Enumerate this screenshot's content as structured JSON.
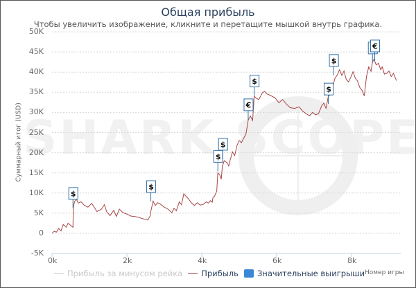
{
  "header": {
    "title": "Общая прибыль",
    "subtitle": "Чтобы увеличить изображение, кликните и перетащите мышкой внутрь графика."
  },
  "watermark": "SHARK SCOPE",
  "colors": {
    "profit_line": "#a84545",
    "rake_line": "#cccccc",
    "flag_border": "#2f6fa6",
    "flag_legend": "#3a87d6",
    "grid": "#d8d8d8",
    "axis": "#c0d0e0"
  },
  "chart_data": {
    "type": "line",
    "title": "Общая прибыль",
    "subtitle": "Чтобы увеличить изображение, кликните и перетащите мышкой внутрь графика.",
    "xlabel": "Номер игры",
    "ylabel": "Суммарный итог (USD)",
    "xlim": [
      0,
      9400
    ],
    "ylim": [
      -5000,
      50000
    ],
    "grid": true,
    "legend_position": "bottom",
    "y_ticks": [
      "-5K",
      "0",
      "5K",
      "10K",
      "15K",
      "20K",
      "25K",
      "30K",
      "35K",
      "40K",
      "45K",
      "50K"
    ],
    "x_ticks": [
      "0k",
      "2k",
      "4k",
      "6k",
      "8k"
    ],
    "legend": [
      {
        "label": "Прибыль за минусом рейка",
        "type": "line",
        "visible": false
      },
      {
        "label": "Прибыль",
        "type": "line",
        "visible": true
      },
      {
        "label": "Значительные выигрыши",
        "type": "flag",
        "visible": true
      }
    ],
    "series": [
      {
        "name": "Прибыль",
        "points": [
          [
            0,
            0
          ],
          [
            60,
            500
          ],
          [
            120,
            300
          ],
          [
            180,
            1200
          ],
          [
            240,
            600
          ],
          [
            300,
            2200
          ],
          [
            380,
            1500
          ],
          [
            430,
            2500
          ],
          [
            560,
            1500
          ],
          [
            570,
            6500
          ],
          [
            600,
            7800
          ],
          [
            650,
            8500
          ],
          [
            700,
            7500
          ],
          [
            780,
            7800
          ],
          [
            860,
            7000
          ],
          [
            960,
            6500
          ],
          [
            1060,
            7400
          ],
          [
            1120,
            6600
          ],
          [
            1200,
            5400
          ],
          [
            1320,
            6000
          ],
          [
            1400,
            7100
          ],
          [
            1460,
            5400
          ],
          [
            1550,
            4400
          ],
          [
            1650,
            5700
          ],
          [
            1720,
            4200
          ],
          [
            1800,
            6000
          ],
          [
            1900,
            5100
          ],
          [
            2000,
            4800
          ],
          [
            2100,
            4300
          ],
          [
            2200,
            4200
          ],
          [
            2300,
            4000
          ],
          [
            2400,
            3700
          ],
          [
            2560,
            3300
          ],
          [
            2620,
            4300
          ],
          [
            2640,
            5500
          ],
          [
            2700,
            8000
          ],
          [
            2760,
            6900
          ],
          [
            2820,
            7600
          ],
          [
            2900,
            7200
          ],
          [
            3000,
            6500
          ],
          [
            3100,
            6000
          ],
          [
            3200,
            5100
          ],
          [
            3260,
            6200
          ],
          [
            3320,
            5600
          ],
          [
            3400,
            7800
          ],
          [
            3460,
            7100
          ],
          [
            3520,
            9800
          ],
          [
            3580,
            9200
          ],
          [
            3640,
            8600
          ],
          [
            3720,
            7600
          ],
          [
            3800,
            6900
          ],
          [
            3880,
            7600
          ],
          [
            3960,
            7000
          ],
          [
            4040,
            7200
          ],
          [
            4120,
            7800
          ],
          [
            4180,
            7500
          ],
          [
            4230,
            8100
          ],
          [
            4280,
            7700
          ],
          [
            4300,
            8900
          ],
          [
            4340,
            9200
          ],
          [
            4400,
            10500
          ],
          [
            4430,
            15000
          ],
          [
            4480,
            14500
          ],
          [
            4520,
            13400
          ],
          [
            4550,
            16600
          ],
          [
            4600,
            18000
          ],
          [
            4680,
            17500
          ],
          [
            4720,
            16700
          ],
          [
            4760,
            18200
          ],
          [
            4820,
            20200
          ],
          [
            4880,
            19300
          ],
          [
            4940,
            21800
          ],
          [
            5000,
            23000
          ],
          [
            5060,
            22500
          ],
          [
            5120,
            23600
          ],
          [
            5180,
            24600
          ],
          [
            5240,
            28100
          ],
          [
            5300,
            29100
          ],
          [
            5360,
            28000
          ],
          [
            5400,
            34000
          ],
          [
            5460,
            33500
          ],
          [
            5520,
            33200
          ],
          [
            5560,
            33800
          ],
          [
            5620,
            34900
          ],
          [
            5680,
            35200
          ],
          [
            5740,
            34600
          ],
          [
            5840,
            34200
          ],
          [
            5960,
            33600
          ],
          [
            6060,
            32400
          ],
          [
            6160,
            33200
          ],
          [
            6260,
            32100
          ],
          [
            6360,
            31200
          ],
          [
            6480,
            31000
          ],
          [
            6600,
            31400
          ],
          [
            6700,
            30300
          ],
          [
            6800,
            29600
          ],
          [
            6880,
            29200
          ],
          [
            6960,
            30000
          ],
          [
            7040,
            29400
          ],
          [
            7120,
            29700
          ],
          [
            7200,
            31600
          ],
          [
            7260,
            32300
          ],
          [
            7320,
            31000
          ],
          [
            7380,
            34000
          ],
          [
            7440,
            34500
          ],
          [
            7480,
            35300
          ],
          [
            7520,
            37200
          ],
          [
            7560,
            38500
          ],
          [
            7620,
            39300
          ],
          [
            7680,
            40600
          ],
          [
            7740,
            39200
          ],
          [
            7800,
            40300
          ],
          [
            7860,
            38200
          ],
          [
            7920,
            37600
          ],
          [
            7980,
            38700
          ],
          [
            8040,
            40100
          ],
          [
            8100,
            38500
          ],
          [
            8160,
            37800
          ],
          [
            8220,
            36200
          ],
          [
            8280,
            35500
          ],
          [
            8340,
            34100
          ],
          [
            8400,
            38900
          ],
          [
            8460,
            41300
          ],
          [
            8520,
            40200
          ],
          [
            8560,
            42500
          ],
          [
            8600,
            43200
          ],
          [
            8660,
            41800
          ],
          [
            8720,
            42200
          ],
          [
            8780,
            40600
          ],
          [
            8820,
            41300
          ],
          [
            8880,
            39500
          ],
          [
            8940,
            39700
          ],
          [
            9000,
            40300
          ],
          [
            9060,
            38900
          ],
          [
            9120,
            39700
          ],
          [
            9200,
            37900
          ]
        ]
      }
    ],
    "significant_wins": [
      {
        "game": 560,
        "value": 6200,
        "symbol": "$"
      },
      {
        "game": 2640,
        "value": 7900,
        "symbol": "$"
      },
      {
        "game": 4430,
        "value": 15400,
        "symbol": "$"
      },
      {
        "game": 4560,
        "value": 18400,
        "symbol": "$"
      },
      {
        "game": 5240,
        "value": 28200,
        "symbol": "€"
      },
      {
        "game": 5400,
        "value": 34100,
        "symbol": "$"
      },
      {
        "game": 7380,
        "value": 32100,
        "symbol": "$"
      },
      {
        "game": 7520,
        "value": 39200,
        "symbol": "$"
      },
      {
        "game": 8560,
        "value": 42300,
        "symbol": "€"
      },
      {
        "game": 8620,
        "value": 42800,
        "symbol": "€"
      }
    ]
  },
  "axis": {
    "y_title": "Суммарный итог (USD)",
    "x_title": "Номер игры",
    "y_labels": [
      "50K",
      "45K",
      "40K",
      "35K",
      "30K",
      "25K",
      "20K",
      "15K",
      "10K",
      "5K",
      "0",
      "-5K"
    ],
    "x_labels": [
      "0k",
      "2k",
      "4k",
      "6k",
      "8k"
    ]
  },
  "legend": {
    "rake": "Прибыль за минусом рейка",
    "profit": "Прибыль",
    "wins": "Значительные выигрыши"
  }
}
